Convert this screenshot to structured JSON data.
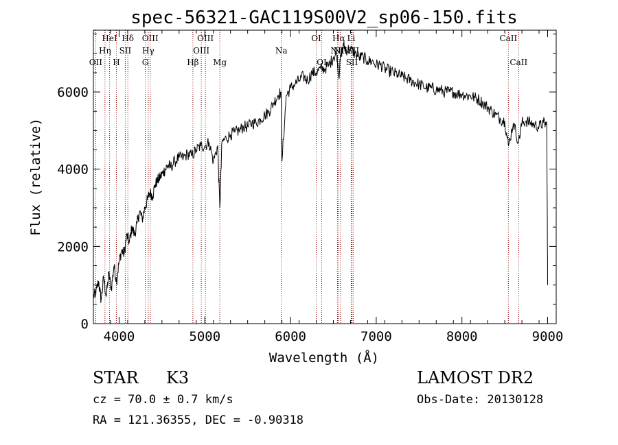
{
  "chart_data": {
    "type": "line",
    "title": "spec-56321-GAC119S00V2_sp06-150.fits",
    "xlabel": "Wavelength (Å)",
    "ylabel": "Flux (relative)",
    "xlim": [
      3700,
      9100
    ],
    "ylim": [
      0,
      7600
    ],
    "x_ticks": [
      4000,
      5000,
      6000,
      7000,
      8000,
      9000
    ],
    "y_ticks": [
      0,
      2000,
      4000,
      6000
    ],
    "x_tick_labels": [
      "4000",
      "5000",
      "6000",
      "7000",
      "8000",
      "9000"
    ],
    "y_tick_labels": [
      "0",
      "2000",
      "4000",
      "6000"
    ],
    "grid": false,
    "line_color": "#000000",
    "marker_line_color": "#8b0000",
    "series": [
      {
        "x": [
          3700,
          3730,
          3760,
          3790,
          3820,
          3850,
          3880,
          3910,
          3940,
          3970,
          4000,
          4030,
          4060,
          4090,
          4120,
          4150,
          4180,
          4210,
          4240,
          4270,
          4300,
          4330,
          4360,
          4390,
          4420,
          4450,
          4480,
          4510,
          4540,
          4570,
          4600,
          4650,
          4700,
          4750,
          4800,
          4850,
          4900,
          4950,
          5000,
          5050,
          5100,
          5150,
          5175,
          5200,
          5250,
          5300,
          5350,
          5400,
          5450,
          5500,
          5550,
          5600,
          5650,
          5700,
          5750,
          5800,
          5850,
          5890,
          5900,
          5950,
          6000,
          6050,
          6100,
          6150,
          6200,
          6250,
          6300,
          6350,
          6400,
          6450,
          6500,
          6540,
          6563,
          6590,
          6620,
          6650,
          6700,
          6750,
          6800,
          6850,
          6900,
          6950,
          7000,
          7050,
          7100,
          7150,
          7200,
          7250,
          7300,
          7350,
          7400,
          7450,
          7500,
          7550,
          7600,
          7650,
          7700,
          7750,
          7800,
          7850,
          7900,
          7950,
          8000,
          8050,
          8100,
          8150,
          8200,
          8250,
          8300,
          8350,
          8400,
          8450,
          8500,
          8542,
          8600,
          8662,
          8700,
          8750,
          8800,
          8850,
          8900,
          8950,
          8990,
          9000
        ],
        "y": [
          700,
          800,
          1100,
          600,
          1200,
          700,
          1300,
          900,
          1500,
          1100,
          1600,
          1900,
          1800,
          2300,
          2100,
          2500,
          2300,
          2600,
          2900,
          2700,
          3000,
          3200,
          3400,
          3300,
          3600,
          3700,
          3800,
          3900,
          4000,
          4100,
          4050,
          4200,
          4300,
          4300,
          4400,
          4350,
          4500,
          4600,
          4600,
          4700,
          4200,
          4600,
          3000,
          4700,
          4800,
          4900,
          4950,
          5000,
          5100,
          5100,
          5200,
          5200,
          5300,
          5400,
          5500,
          5700,
          5900,
          6000,
          4200,
          5900,
          6100,
          6200,
          6300,
          6400,
          6300,
          6500,
          6500,
          6600,
          6600,
          6700,
          6900,
          7000,
          6400,
          7000,
          7200,
          7100,
          7100,
          7000,
          6900,
          6900,
          6800,
          6800,
          6700,
          6700,
          6600,
          6550,
          6500,
          6450,
          6400,
          6350,
          6300,
          6250,
          6200,
          6150,
          6100,
          6100,
          6050,
          6050,
          6000,
          6000,
          6000,
          5950,
          5950,
          5900,
          5900,
          5850,
          5800,
          5700,
          5600,
          5500,
          5400,
          5300,
          5250,
          4600,
          5200,
          4700,
          5200,
          5250,
          5200,
          5150,
          5100,
          5200,
          5150,
          1000
        ]
      }
    ],
    "line_markers": [
      {
        "label": "OII",
        "x": 3727,
        "row": 2
      },
      {
        "label": "Hη",
        "x": 3835,
        "row": 1
      },
      {
        "label": "HeI",
        "x": 3889,
        "row": 0
      },
      {
        "label": "H",
        "x": 3968,
        "row": 2
      },
      {
        "label": "SII",
        "x": 4072,
        "row": 1
      },
      {
        "label": "Hδ",
        "x": 4102,
        "row": 0
      },
      {
        "label": "G",
        "x": 4305,
        "row": 2
      },
      {
        "label": "Hγ",
        "x": 4340,
        "row": 1
      },
      {
        "label": "OIII",
        "x": 4363,
        "row": 0
      },
      {
        "label": "Hβ",
        "x": 4861,
        "row": 2
      },
      {
        "label": "OIII",
        "x": 4959,
        "row": 1
      },
      {
        "label": "OIII",
        "x": 5007,
        "row": 0
      },
      {
        "label": "Mg",
        "x": 5175,
        "row": 2
      },
      {
        "label": "Na",
        "x": 5893,
        "row": 1
      },
      {
        "label": "OI",
        "x": 6300,
        "row": 0
      },
      {
        "label": "OI",
        "x": 6364,
        "row": 2
      },
      {
        "label": "NII",
        "x": 6548,
        "row": 1
      },
      {
        "label": "Hα",
        "x": 6563,
        "row": 0
      },
      {
        "label": "NII",
        "x": 6583,
        "row": 1
      },
      {
        "label": "Li",
        "x": 6708,
        "row": 0
      },
      {
        "label": "SII",
        "x": 6717,
        "row": 2
      },
      {
        "label": "SII",
        "x": 6731,
        "row": 1
      },
      {
        "label": "CaII",
        "x": 8542,
        "row": 0
      },
      {
        "label": "CaII",
        "x": 8662,
        "row": 2
      }
    ]
  },
  "footer": {
    "class_label": "STAR",
    "subclass": "K3",
    "survey": "LAMOST DR2",
    "cz_line": "cz = 70.0 ± 0.7 km/s",
    "obs_date": "Obs-Date: 20130128",
    "radec_line": "RA = 121.36355, DEC =  -0.90318"
  }
}
